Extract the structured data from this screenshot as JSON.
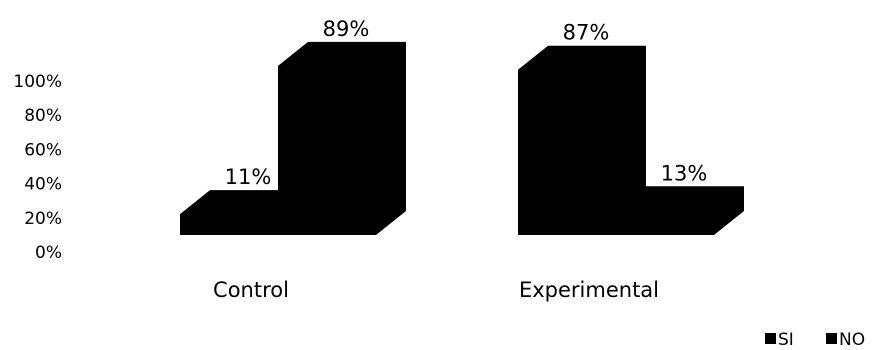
{
  "chart_data": {
    "type": "bar",
    "categories": [
      "Control",
      "Experimental"
    ],
    "series": [
      {
        "name": "SI",
        "values": [
          11,
          87
        ]
      },
      {
        "name": "NO",
        "values": [
          89,
          13
        ]
      }
    ],
    "data_labels": [
      [
        "11%",
        "87%"
      ],
      [
        "89%",
        "13%"
      ]
    ],
    "y_ticks": [
      "0%",
      "20%",
      "40%",
      "60%",
      "80%",
      "100%"
    ],
    "ylim": [
      0,
      100
    ],
    "grid": false,
    "legend_position": "bottom-right",
    "colors": {
      "SI": "#000000",
      "NO": "#000000"
    },
    "style": "3d"
  }
}
